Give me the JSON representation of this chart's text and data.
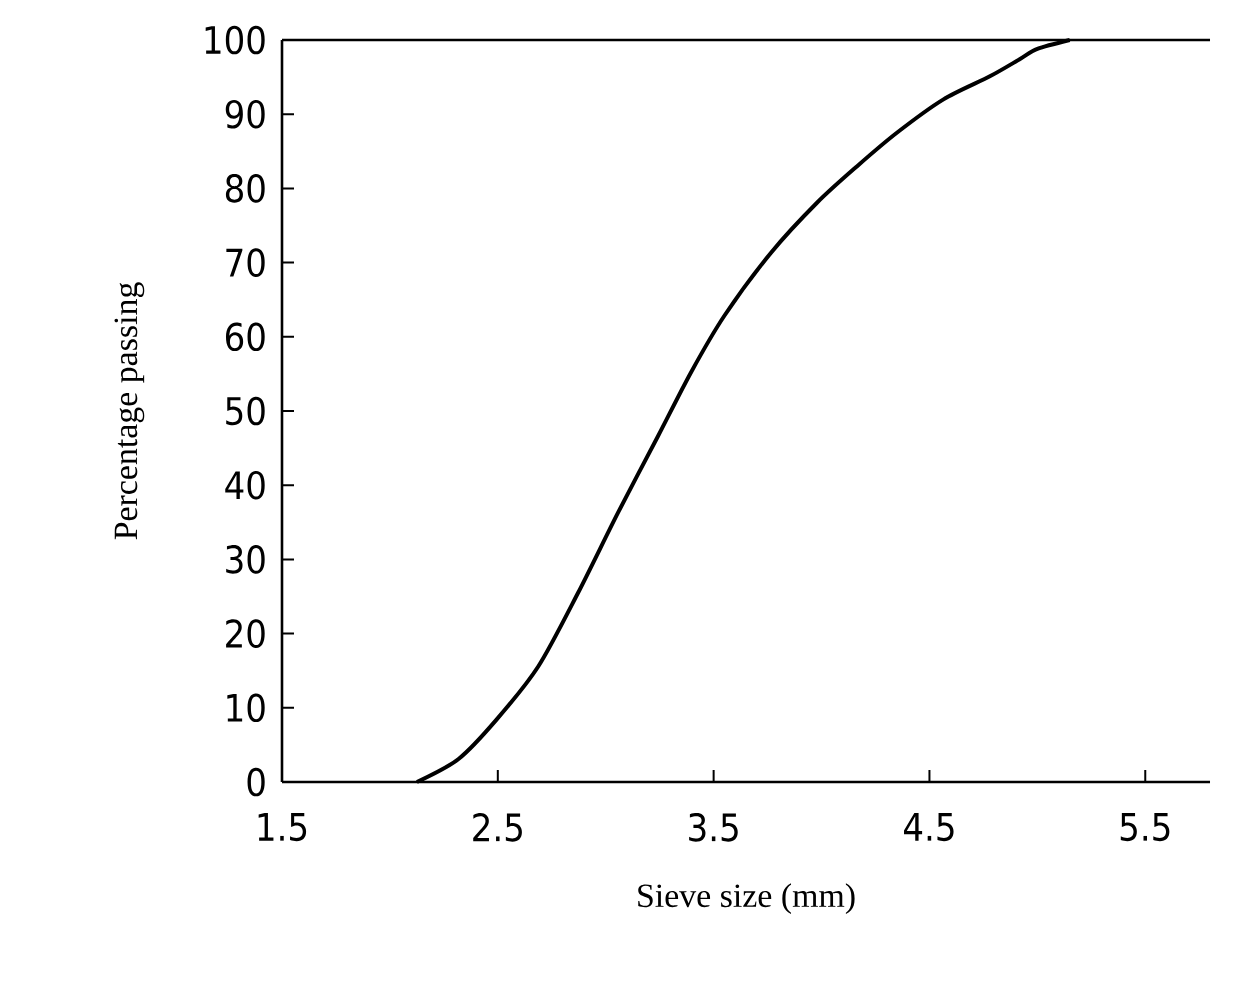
{
  "chart_data": {
    "type": "line",
    "xlabel": "Sieve size (mm)",
    "ylabel": "Percentage passing",
    "series": [
      {
        "color": "#000000",
        "x": [
          2.125,
          2.318,
          2.494,
          2.688,
          2.872,
          3.057,
          3.242,
          3.395,
          3.549,
          3.765,
          3.98,
          4.165,
          4.349,
          4.565,
          4.78,
          4.918,
          5.0,
          5.15
        ],
        "values": [
          0,
          3.1,
          8.4,
          15.6,
          25.5,
          36.3,
          46.6,
          55.2,
          62.8,
          71.3,
          78.1,
          83.0,
          87.5,
          92.0,
          95.1,
          97.4,
          98.8,
          100
        ]
      }
    ],
    "xlim": [
      1.5,
      5.8
    ],
    "xticks": [
      1.5,
      2.5,
      3.5,
      4.5,
      5.5
    ],
    "ylim": [
      0,
      100
    ],
    "yticks": [
      0,
      10,
      20,
      30,
      40,
      50,
      60,
      70,
      80,
      90,
      100
    ],
    "grid": false,
    "marker": "none",
    "line_style": "solid"
  }
}
